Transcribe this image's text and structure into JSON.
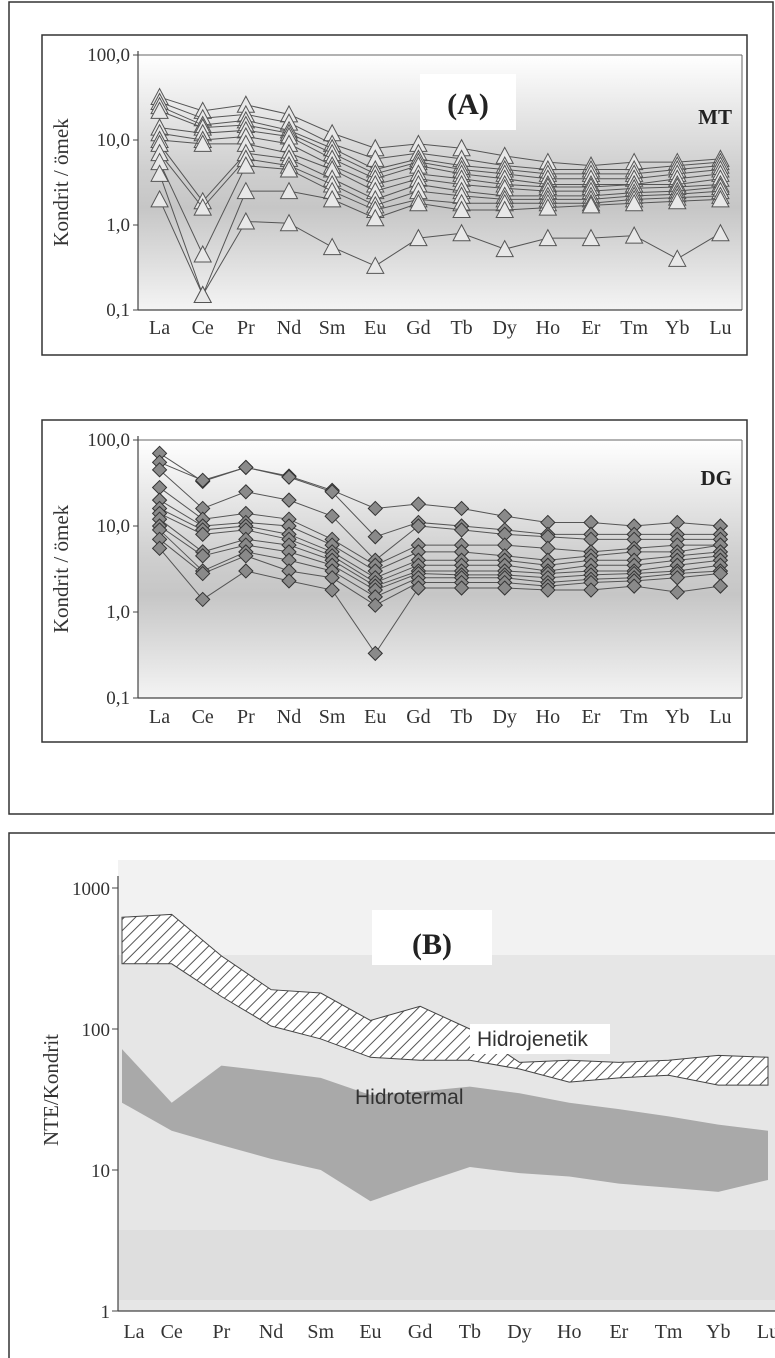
{
  "chart_data": [
    {
      "type": "line",
      "panel_label": "(A)",
      "series_group": "MT",
      "ylabel": "Kondrit / ömek",
      "yscale": "log",
      "ylim": [
        0.1,
        100
      ],
      "ytick_labels": [
        "100,0",
        "10,0",
        "1,0",
        "0,1"
      ],
      "yticks": [
        100,
        10,
        1,
        0.1
      ],
      "categories": [
        "La",
        "Ce",
        "Pr",
        "Nd",
        "Sm",
        "Eu",
        "Gd",
        "Tb",
        "Dy",
        "Ho",
        "Er",
        "Tm",
        "Yb",
        "Lu"
      ],
      "marker": "triangle",
      "series": [
        {
          "values": [
            32,
            22,
            26,
            20,
            12,
            8,
            9,
            8,
            6.5,
            5.5,
            5,
            5.5,
            5.5,
            6
          ]
        },
        {
          "values": [
            28,
            18,
            20,
            16,
            9,
            6,
            7,
            6,
            5,
            4.5,
            4.5,
            4.5,
            5,
            5.5
          ]
        },
        {
          "values": [
            25,
            15,
            17,
            13,
            8,
            4.5,
            6,
            5,
            4.5,
            4,
            4,
            4,
            4.5,
            5
          ]
        },
        {
          "values": [
            22,
            14,
            15,
            12,
            7,
            4,
            5.5,
            4.5,
            4,
            3.5,
            3.5,
            3.5,
            4,
            4.5
          ]
        },
        {
          "values": [
            14,
            12,
            13,
            11,
            6,
            3.5,
            5,
            4,
            3.5,
            3,
            3,
            3,
            3.5,
            4
          ]
        },
        {
          "values": [
            12,
            10,
            11,
            9,
            5,
            3,
            4,
            3.5,
            3,
            2.8,
            2.8,
            3,
            3,
            3.5
          ]
        },
        {
          "values": [
            10,
            9,
            9,
            7,
            4.5,
            2.5,
            3.5,
            3,
            2.7,
            2.5,
            2.5,
            2.7,
            2.8,
            3
          ]
        },
        {
          "values": [
            9,
            1.9,
            7,
            6,
            3.5,
            2,
            3,
            2.5,
            2.2,
            2.2,
            2.2,
            2.4,
            2.5,
            2.8
          ]
        },
        {
          "values": [
            7,
            1.6,
            6,
            5,
            3,
            1.7,
            2.5,
            2.2,
            2,
            2,
            2,
            2.2,
            2.3,
            2.5
          ]
        },
        {
          "values": [
            5.5,
            0.45,
            5,
            4.5,
            2.5,
            1.5,
            2,
            1.8,
            1.8,
            1.8,
            1.8,
            2,
            2.1,
            2.2
          ]
        },
        {
          "values": [
            4,
            0.15,
            2.5,
            2.5,
            2,
            1.2,
            1.8,
            1.5,
            1.5,
            1.6,
            1.7,
            1.8,
            1.9,
            2
          ]
        },
        {
          "values": [
            2,
            0.15,
            1.1,
            1.05,
            0.55,
            0.33,
            0.7,
            0.8,
            0.52,
            0.7,
            0.7,
            0.75,
            0.4,
            0.8
          ]
        }
      ]
    },
    {
      "type": "line",
      "series_group": "DG",
      "ylabel": "Kondrit / ömek",
      "yscale": "log",
      "ylim": [
        0.1,
        100
      ],
      "ytick_labels": [
        "100,0",
        "10,0",
        "1,0",
        "0,1"
      ],
      "yticks": [
        100,
        10,
        1,
        0.1
      ],
      "categories": [
        "La",
        "Ce",
        "Pr",
        "Nd",
        "Sm",
        "Eu",
        "Gd",
        "Tb",
        "Dy",
        "Ho",
        "Er",
        "Tm",
        "Yb",
        "Lu"
      ],
      "marker": "diamond",
      "series": [
        {
          "values": [
            70,
            33,
            48,
            38,
            26,
            16,
            18,
            16,
            13,
            11,
            11,
            10,
            11,
            10
          ]
        },
        {
          "values": [
            55,
            34,
            48,
            37,
            25,
            7.5,
            11,
            10,
            9,
            8,
            8,
            8,
            8,
            8
          ]
        },
        {
          "values": [
            45,
            16,
            25,
            20,
            13,
            4,
            10,
            9,
            8,
            7.5,
            7,
            7,
            7,
            7
          ]
        },
        {
          "values": [
            28,
            12,
            14,
            12,
            7,
            3.5,
            6,
            6,
            6,
            5.5,
            5,
            5.5,
            6,
            6
          ]
        },
        {
          "values": [
            20,
            10,
            11,
            10,
            6,
            3,
            5,
            5,
            4.5,
            4,
            4.5,
            5,
            5,
            6
          ]
        },
        {
          "values": [
            16,
            9,
            10,
            8,
            5,
            2.5,
            4,
            4,
            4,
            3.5,
            4,
            4,
            4.5,
            5
          ]
        },
        {
          "values": [
            14,
            8,
            9,
            7,
            4.5,
            2.2,
            3.5,
            3.5,
            3.5,
            3,
            3.5,
            3.5,
            4,
            4.5
          ]
        },
        {
          "values": [
            12,
            5,
            7,
            6,
            4,
            2,
            3,
            3,
            3,
            2.8,
            3,
            3,
            3.5,
            4
          ]
        },
        {
          "values": [
            10,
            4.5,
            6,
            5,
            3.5,
            1.8,
            2.8,
            2.7,
            2.7,
            2.5,
            2.7,
            2.8,
            3,
            3.5
          ]
        },
        {
          "values": [
            9,
            3,
            5,
            4,
            3,
            1.5,
            2.5,
            2.5,
            2.5,
            2.2,
            2.4,
            2.5,
            2.8,
            3
          ]
        },
        {
          "values": [
            7,
            2.8,
            4.5,
            3,
            2.5,
            1.2,
            2.2,
            2.2,
            2.2,
            2,
            2.2,
            2.3,
            2.5,
            2.8
          ]
        },
        {
          "values": [
            5.5,
            1.4,
            3,
            2.3,
            1.8,
            0.33,
            1.9,
            1.9,
            1.9,
            1.8,
            1.8,
            2,
            1.7,
            2
          ]
        }
      ]
    },
    {
      "type": "area",
      "panel_label": "(B)",
      "ylabel": "NTE/Kondrit",
      "yscale": "log",
      "ylim": [
        1,
        1000
      ],
      "ytick_labels": [
        "1000",
        "100",
        "10",
        "1"
      ],
      "yticks": [
        1000,
        100,
        10,
        1
      ],
      "categories": [
        "La",
        "Ce",
        "Pr",
        "Nd",
        "Sm",
        "Eu",
        "Gd",
        "Tb",
        "Dy",
        "Ho",
        "Er",
        "Tm",
        "Yb",
        "Lu"
      ],
      "regions": [
        {
          "name": "Hidrojenetik",
          "fill": "hatched",
          "upper": [
            620,
            650,
            330,
            190,
            180,
            115,
            145,
            100,
            58,
            60,
            58,
            60,
            65,
            63
          ],
          "lower": [
            290,
            290,
            170,
            105,
            85,
            63,
            60,
            60,
            52,
            42,
            45,
            47,
            40,
            40
          ]
        },
        {
          "name": "Hidrotermal",
          "fill": "gray",
          "upper": [
            72,
            30,
            55,
            50,
            45,
            34,
            36,
            39,
            35,
            30,
            27,
            24,
            21,
            19
          ],
          "lower": [
            30,
            19,
            15,
            12,
            10,
            6,
            8,
            10.5,
            9.5,
            9,
            8,
            7.5,
            7,
            8.5
          ]
        }
      ]
    }
  ]
}
